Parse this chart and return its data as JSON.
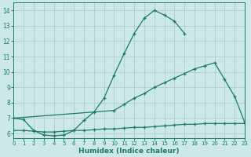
{
  "xlabel": "Humidex (Indice chaleur)",
  "color": "#1a7a6a",
  "bg_color": "#cce8e8",
  "grid_color": "#aecece",
  "xlim": [
    0,
    23
  ],
  "ylim": [
    5.7,
    14.5
  ],
  "yticks": [
    6,
    7,
    8,
    9,
    10,
    11,
    12,
    13,
    14
  ],
  "xticks": [
    0,
    1,
    2,
    3,
    4,
    5,
    6,
    7,
    8,
    9,
    10,
    11,
    12,
    13,
    14,
    15,
    16,
    17,
    18,
    19,
    20,
    21,
    22,
    23
  ],
  "line1_x": [
    0,
    1,
    2,
    3,
    4,
    5,
    6,
    7,
    8,
    9,
    10,
    11,
    12,
    13,
    14,
    15,
    16,
    17
  ],
  "line1_y": [
    7.0,
    6.9,
    6.2,
    5.9,
    5.85,
    5.9,
    6.2,
    6.85,
    7.4,
    8.3,
    9.8,
    11.2,
    12.5,
    13.5,
    14.0,
    13.7,
    13.3,
    12.5
  ],
  "line2_x": [
    0,
    10,
    11,
    12,
    13,
    14,
    15,
    16,
    17,
    18,
    19,
    20,
    21,
    22,
    23
  ],
  "line2_y": [
    7.0,
    7.5,
    7.9,
    8.3,
    8.6,
    9.0,
    9.3,
    9.6,
    9.9,
    10.2,
    10.4,
    10.6,
    9.5,
    8.4,
    6.7
  ],
  "line3_x": [
    0,
    1,
    2,
    3,
    4,
    5,
    6,
    7,
    8,
    9,
    10,
    11,
    12,
    13,
    14,
    15,
    16,
    17,
    18,
    19,
    20,
    21,
    22,
    23
  ],
  "line3_y": [
    6.2,
    6.2,
    6.15,
    6.1,
    6.1,
    6.15,
    6.2,
    6.2,
    6.25,
    6.3,
    6.3,
    6.35,
    6.4,
    6.4,
    6.45,
    6.5,
    6.55,
    6.6,
    6.6,
    6.65,
    6.65,
    6.65,
    6.65,
    6.65
  ]
}
